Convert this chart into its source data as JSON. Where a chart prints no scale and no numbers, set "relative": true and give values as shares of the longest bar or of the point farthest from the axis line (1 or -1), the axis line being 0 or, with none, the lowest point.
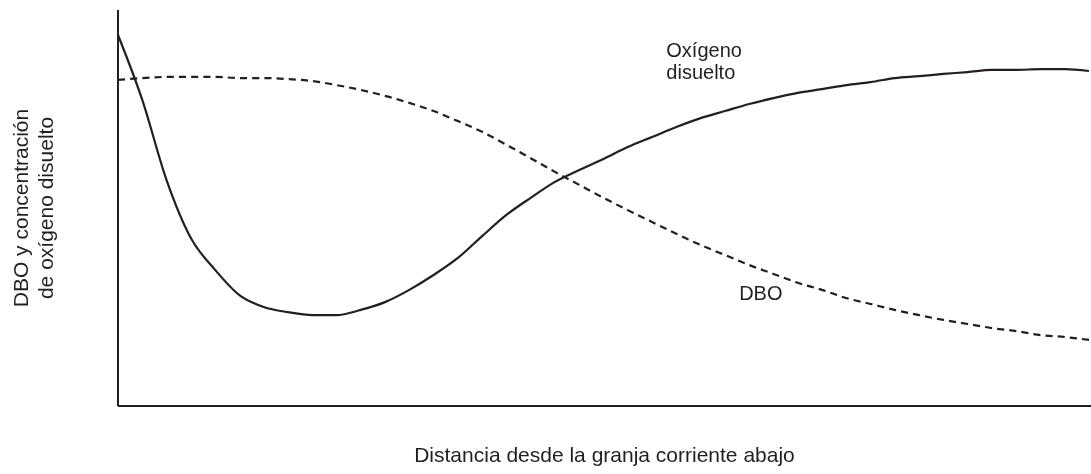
{
  "chart_data": {
    "type": "line",
    "relative": true,
    "xlabel": "Distancia desde la granja corriente abajo",
    "ylabel": "DBO y concentración de oxígeno disuelto",
    "categories": [
      null,
      null,
      null,
      null,
      null,
      null,
      null,
      null,
      null,
      null,
      null,
      null,
      null,
      null,
      null,
      null,
      null,
      null,
      null,
      null,
      null,
      null,
      null,
      null,
      null,
      null,
      null,
      null,
      null,
      null,
      null,
      null,
      null,
      null,
      null,
      null,
      null,
      null,
      null,
      null,
      null
    ],
    "series": [
      {
        "name": "Oxígeno disuelto",
        "color": "#231f20",
        "line_style": "solid",
        "values": [
          1,
          0.825,
          0.609,
          0.453,
          0.367,
          0.299,
          0.267,
          0.253,
          0.245,
          0.245,
          0.259,
          0.28,
          0.313,
          0.353,
          0.399,
          0.458,
          0.515,
          0.561,
          0.604,
          0.636,
          0.666,
          0.698,
          0.725,
          0.752,
          0.776,
          0.795,
          0.814,
          0.83,
          0.844,
          0.854,
          0.865,
          0.873,
          0.884,
          0.889,
          0.895,
          0.9,
          0.906,
          0.906,
          0.908,
          0.908,
          0.903
        ]
      },
      {
        "name": "DBO",
        "color": "#231f20",
        "line_style": "dashed",
        "values": [
          0.879,
          0.884,
          0.887,
          0.887,
          0.887,
          0.884,
          0.884,
          0.881,
          0.876,
          0.865,
          0.852,
          0.836,
          0.817,
          0.795,
          0.768,
          0.739,
          0.704,
          0.668,
          0.631,
          0.596,
          0.561,
          0.528,
          0.496,
          0.464,
          0.434,
          0.407,
          0.38,
          0.356,
          0.332,
          0.313,
          0.291,
          0.275,
          0.259,
          0.245,
          0.232,
          0.221,
          0.21,
          0.202,
          0.191,
          0.186,
          0.178
        ]
      }
    ]
  }
}
